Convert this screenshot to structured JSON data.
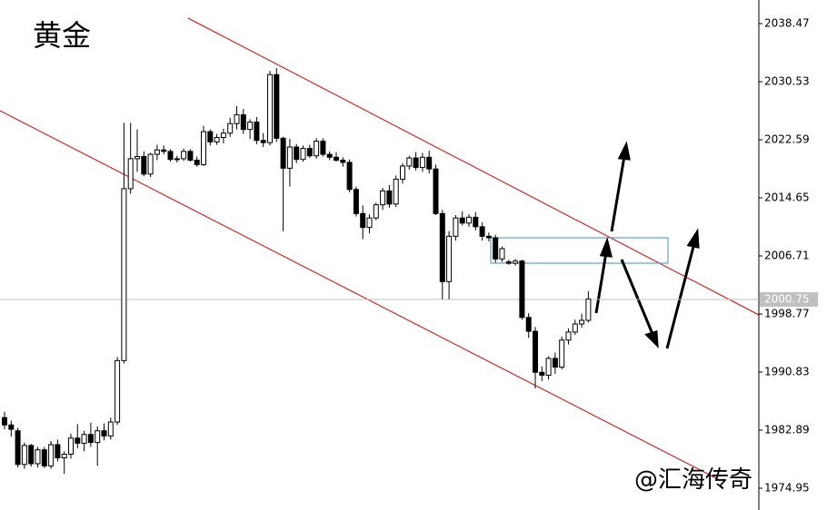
{
  "chart_data": {
    "type": "candlestick",
    "title": "黄金",
    "annotation": "@汇海传奇",
    "ylim": [
      1971.97,
      2041.7
    ],
    "yticks": [
      2038.47,
      2030.53,
      2022.59,
      2014.65,
      2006.71,
      1998.77,
      1990.83,
      1982.89,
      1974.95
    ],
    "last_price": 2000.75,
    "up_color": "#ffffff",
    "down_color": "#000000",
    "ohlc": [
      [
        1984.6,
        1985.4,
        1983.0,
        1983.6
      ],
      [
        1983.6,
        1984.2,
        1982.0,
        1983.0
      ],
      [
        1982.8,
        1983.2,
        1977.8,
        1978.2
      ],
      [
        1978.2,
        1981.2,
        1977.6,
        1980.8
      ],
      [
        1980.8,
        1981.0,
        1977.9,
        1978.3
      ],
      [
        1978.3,
        1980.6,
        1977.8,
        1980.2
      ],
      [
        1980.2,
        1980.6,
        1977.7,
        1978.0
      ],
      [
        1978.0,
        1981.4,
        1977.6,
        1980.9
      ],
      [
        1980.9,
        1981.6,
        1978.6,
        1979.1
      ],
      [
        1979.1,
        1980.0,
        1976.9,
        1979.6
      ],
      [
        1979.6,
        1982.4,
        1979.0,
        1981.8
      ],
      [
        1981.8,
        1983.7,
        1980.4,
        1981.1
      ],
      [
        1981.1,
        1982.8,
        1980.0,
        1982.3
      ],
      [
        1982.3,
        1983.9,
        1980.6,
        1981.2
      ],
      [
        1981.2,
        1983.4,
        1978.0,
        1982.8
      ],
      [
        1982.8,
        1983.8,
        1981.5,
        1982.1
      ],
      [
        1982.1,
        1984.6,
        1981.6,
        1984.0
      ],
      [
        1984.0,
        1992.9,
        1983.6,
        1992.4
      ],
      [
        1992.4,
        2024.9,
        1992.0,
        2015.9
      ],
      [
        2015.9,
        2024.9,
        2015.2,
        2020.0
      ],
      [
        2020.0,
        2024.0,
        2018.2,
        2020.3
      ],
      [
        2020.3,
        2021.0,
        2017.6,
        2017.9
      ],
      [
        2017.9,
        2020.8,
        2017.5,
        2020.6
      ],
      [
        2020.6,
        2021.9,
        2019.8,
        2021.2
      ],
      [
        2021.2,
        2021.8,
        2020.6,
        2021.0
      ],
      [
        2021.0,
        2021.3,
        2019.6,
        2019.9
      ],
      [
        2019.9,
        2020.4,
        2019.5,
        2020.0
      ],
      [
        2020.0,
        2021.4,
        2019.7,
        2021.0
      ],
      [
        2021.0,
        2021.3,
        2019.6,
        2019.8
      ],
      [
        2019.8,
        2020.3,
        2018.9,
        2019.2
      ],
      [
        2019.2,
        2024.5,
        2019.0,
        2023.7
      ],
      [
        2023.7,
        2024.0,
        2021.8,
        2022.3
      ],
      [
        2022.3,
        2023.4,
        2021.9,
        2022.9
      ],
      [
        2022.9,
        2024.1,
        2022.1,
        2023.5
      ],
      [
        2023.5,
        2025.6,
        2023.0,
        2024.8
      ],
      [
        2024.8,
        2027.2,
        2024.0,
        2026.0
      ],
      [
        2026.0,
        2026.8,
        2023.4,
        2024.0
      ],
      [
        2024.0,
        2025.4,
        2022.7,
        2025.0
      ],
      [
        2025.0,
        2025.7,
        2022.0,
        2022.5
      ],
      [
        2022.5,
        2023.5,
        2021.6,
        2022.2
      ],
      [
        2022.2,
        2032.0,
        2021.8,
        2031.5
      ],
      [
        2031.5,
        2032.4,
        2022.3,
        2022.8
      ],
      [
        2022.8,
        2023.0,
        2010.1,
        2018.7
      ],
      [
        2018.7,
        2022.7,
        2016.2,
        2021.6
      ],
      [
        2021.6,
        2022.0,
        2019.4,
        2019.9
      ],
      [
        2019.9,
        2021.8,
        2019.6,
        2021.4
      ],
      [
        2021.4,
        2021.9,
        2020.1,
        2020.4
      ],
      [
        2020.4,
        2022.8,
        2020.0,
        2022.4
      ],
      [
        2022.4,
        2022.8,
        2020.3,
        2020.6
      ],
      [
        2020.6,
        2021.0,
        2019.8,
        2020.2
      ],
      [
        2020.2,
        2020.9,
        2019.6,
        2019.8
      ],
      [
        2019.8,
        2020.2,
        2018.9,
        2019.5
      ],
      [
        2019.5,
        2019.9,
        2015.4,
        2015.8
      ],
      [
        2015.8,
        2016.2,
        2012.1,
        2012.5
      ],
      [
        2012.5,
        2013.6,
        2009.0,
        2010.6
      ],
      [
        2010.6,
        2012.4,
        2009.8,
        2011.9
      ],
      [
        2011.9,
        2014.0,
        2011.6,
        2013.7
      ],
      [
        2013.7,
        2016.0,
        2013.0,
        2015.6
      ],
      [
        2015.6,
        2016.4,
        2013.3,
        2013.8
      ],
      [
        2013.8,
        2017.7,
        2013.4,
        2017.2
      ],
      [
        2017.2,
        2019.4,
        2016.6,
        2019.0
      ],
      [
        2019.0,
        2020.4,
        2018.5,
        2020.1
      ],
      [
        2020.1,
        2020.9,
        2018.4,
        2018.8
      ],
      [
        2018.8,
        2020.8,
        2018.2,
        2020.2
      ],
      [
        2020.2,
        2021.1,
        2018.0,
        2018.6
      ],
      [
        2018.6,
        2019.2,
        2012.3,
        2012.5
      ],
      [
        2012.5,
        2013.0,
        2000.8,
        2003.2
      ],
      [
        2003.2,
        2010.1,
        2000.8,
        2009.4
      ],
      [
        2009.4,
        2012.3,
        2008.8,
        2011.9
      ],
      [
        2011.9,
        2012.8,
        2010.9,
        2011.2
      ],
      [
        2011.2,
        2012.4,
        2010.7,
        2012.0
      ],
      [
        2012.0,
        2012.7,
        2010.2,
        2010.7
      ],
      [
        2010.7,
        2011.3,
        2008.8,
        2009.4
      ],
      [
        2009.4,
        2009.9,
        2008.7,
        2009.2
      ],
      [
        2009.2,
        2009.6,
        2005.8,
        2006.3
      ],
      [
        2006.3,
        2008.0,
        2005.9,
        2007.7
      ],
      [
        2005.9,
        2006.2,
        2005.5,
        2005.7
      ],
      [
        2005.7,
        2006.3,
        2005.4,
        2006.0
      ],
      [
        2006.0,
        2006.2,
        1998.0,
        1998.3
      ],
      [
        1998.3,
        1998.9,
        1995.5,
        1996.4
      ],
      [
        1996.4,
        1997.0,
        1988.6,
        1990.8
      ],
      [
        1990.8,
        1991.6,
        1989.6,
        1990.4
      ],
      [
        1990.4,
        1993.0,
        1989.8,
        1992.7
      ],
      [
        1992.7,
        1993.5,
        1990.6,
        1991.5
      ],
      [
        1991.5,
        1995.7,
        1991.2,
        1995.2
      ],
      [
        1995.2,
        1996.8,
        1994.6,
        1996.3
      ],
      [
        1996.3,
        1998.0,
        1995.9,
        1997.4
      ],
      [
        1997.4,
        1998.8,
        1996.9,
        1997.9
      ],
      [
        1997.9,
        2001.9,
        1997.6,
        2000.8
      ]
    ]
  }
}
